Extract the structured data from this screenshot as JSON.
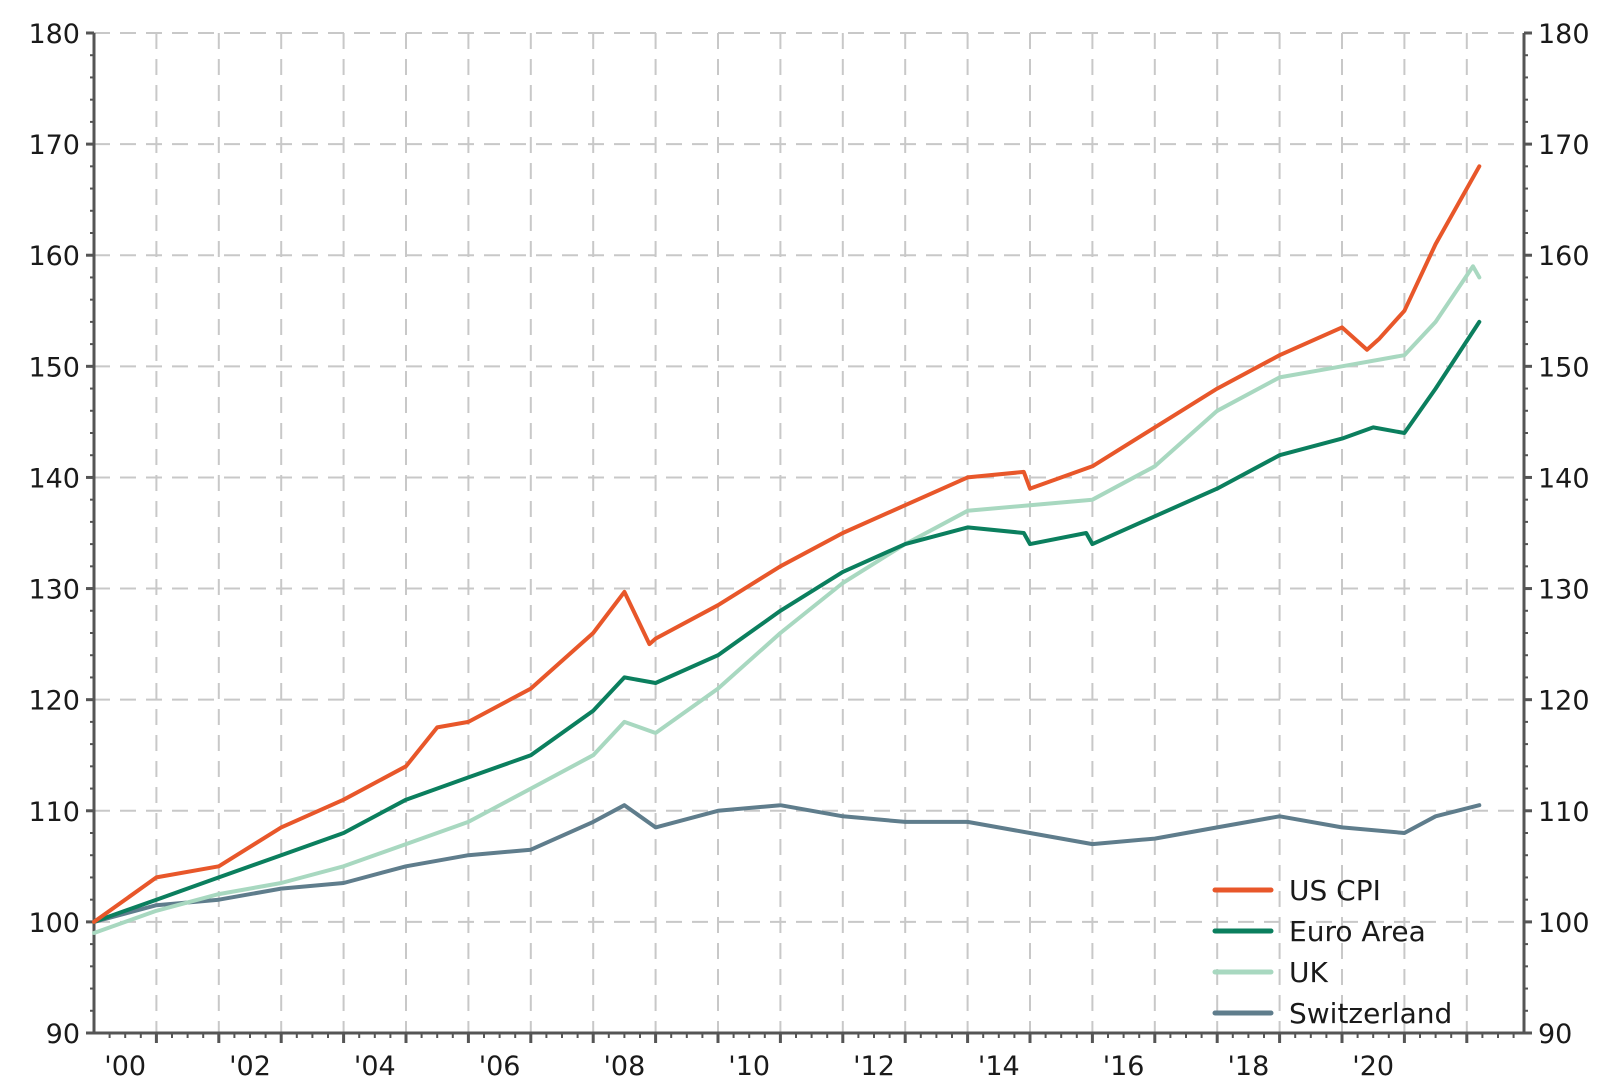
{
  "chart_data": {
    "type": "line",
    "title": "",
    "xlabel": "",
    "ylabel": "",
    "xlim": [
      2000,
      2022.9
    ],
    "ylim": [
      90,
      180
    ],
    "grid": true,
    "legend_position": "bottom-right",
    "y_ticks": [
      "90",
      "100",
      "110",
      "120",
      "130",
      "140",
      "150",
      "160",
      "170",
      "180"
    ],
    "y_tick_values": [
      90,
      100,
      110,
      120,
      130,
      140,
      150,
      160,
      170,
      180
    ],
    "x_ticks": [
      "'00",
      "'02",
      "'04",
      "'06",
      "'08",
      "'10",
      "'12",
      "'14",
      "'16",
      "'18",
      "'20"
    ],
    "x_tick_values": [
      2000,
      2002,
      2004,
      2006,
      2008,
      2010,
      2012,
      2014,
      2016,
      2018,
      2020
    ],
    "series": [
      {
        "name": "US CPI",
        "color": "#e8572a",
        "x": [
          2000,
          2001,
          2002,
          2003,
          2004,
          2005,
          2005.5,
          2006,
          2007,
          2008,
          2008.5,
          2008.9,
          2009,
          2010,
          2011,
          2012,
          2013,
          2014,
          2014.9,
          2015,
          2016,
          2017,
          2018,
          2019,
          2020,
          2020.4,
          2020.6,
          2021,
          2021.5,
          2022.2
        ],
        "y": [
          100,
          104,
          105,
          108.5,
          111,
          114,
          117.5,
          118,
          121,
          126,
          129.7,
          125,
          125.5,
          128.5,
          132,
          135,
          137.5,
          140,
          140.5,
          139,
          141,
          144.5,
          148,
          151,
          153.5,
          151.5,
          152.5,
          155,
          161,
          168
        ]
      },
      {
        "name": "Euro Area",
        "color": "#0b7f5e",
        "x": [
          2000,
          2001,
          2002,
          2003,
          2004,
          2005,
          2006,
          2007,
          2008,
          2008.5,
          2009,
          2010,
          2011,
          2012,
          2013,
          2014,
          2014.9,
          2015,
          2015.9,
          2016,
          2017,
          2018,
          2019,
          2020,
          2020.5,
          2021,
          2021.5,
          2022.2
        ],
        "y": [
          100,
          102,
          104,
          106,
          108,
          111,
          113,
          115,
          119,
          122,
          121.5,
          124,
          128,
          131.5,
          134,
          135.5,
          135,
          134,
          135,
          134,
          136.5,
          139,
          142,
          143.5,
          144.5,
          144,
          148,
          154
        ]
      },
      {
        "name": "UK",
        "color": "#a8d8c0",
        "x": [
          2000,
          2001,
          2002,
          2003,
          2004,
          2005,
          2006,
          2007,
          2008,
          2008.5,
          2009,
          2010,
          2011,
          2012,
          2013,
          2014,
          2015,
          2016,
          2017,
          2018,
          2019,
          2020,
          2021,
          2021.5,
          2022.1,
          2022.2
        ],
        "y": [
          99,
          101,
          102.5,
          103.5,
          105,
          107,
          109,
          112,
          115,
          118,
          117,
          121,
          126,
          130.5,
          134,
          137,
          137.5,
          138,
          141,
          146,
          149,
          150,
          151,
          154,
          159,
          158
        ]
      },
      {
        "name": "Switzerland",
        "color": "#5f7d8c",
        "x": [
          2000,
          2001,
          2002,
          2003,
          2004,
          2005,
          2006,
          2007,
          2008,
          2008.5,
          2009,
          2010,
          2011,
          2012,
          2013,
          2014,
          2015,
          2016,
          2017,
          2018,
          2019,
          2020,
          2021,
          2021.5,
          2022.2
        ],
        "y": [
          100,
          101.5,
          102,
          103,
          103.5,
          105,
          106,
          106.5,
          109,
          110.5,
          108.5,
          110,
          110.5,
          109.5,
          109,
          109,
          108,
          107,
          107.5,
          108.5,
          109.5,
          108.5,
          108,
          109.5,
          110.5
        ]
      }
    ]
  }
}
